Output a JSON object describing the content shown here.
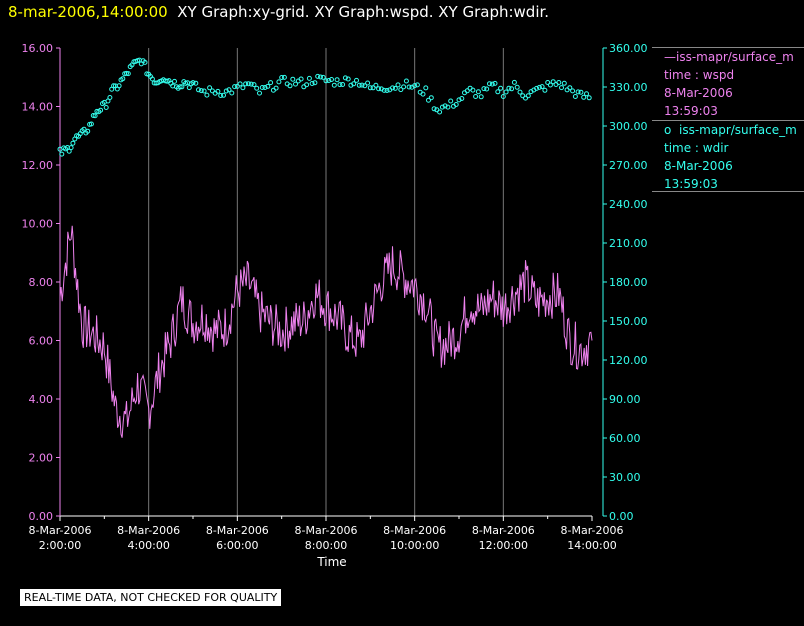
{
  "header": {
    "timestamp": "8-mar-2006,14:00:00",
    "graphs": "XY Graph:xy-grid.  XY Graph:wspd.  XY Graph:wdir."
  },
  "legend": {
    "wspd": {
      "marker": "—",
      "name": "iss-mapr/surface_m",
      "time_label": "time : wspd",
      "date": "8-Mar-2006",
      "time": "13:59:03"
    },
    "wdir": {
      "marker": "o",
      "name": "iss-mapr/surface_m",
      "time_label": "time : wdir",
      "date": "8-Mar-2006",
      "time": "13:59:03"
    }
  },
  "quality_note": "REAL-TIME DATA, NOT CHECKED FOR QUALITY",
  "colors": {
    "wspd": "#ee82ee",
    "wdir": "#33ffee",
    "grid": "#777777",
    "axis_text": "#ffffff",
    "left_axis": "#ee82ee",
    "right_axis": "#33ffee"
  },
  "chart_data": {
    "type": "line",
    "xlabel": "Time",
    "x_range": [
      "8-Mar-2006 02:00:00",
      "8-Mar-2006 14:00:00"
    ],
    "x_ticks": [
      {
        "date": "8-Mar-2006",
        "time": "2:00:00"
      },
      {
        "date": "8-Mar-2006",
        "time": "4:00:00"
      },
      {
        "date": "8-Mar-2006",
        "time": "6:00:00"
      },
      {
        "date": "8-Mar-2006",
        "time": "8:00:00"
      },
      {
        "date": "8-Mar-2006",
        "time": "10:00:00"
      },
      {
        "date": "8-Mar-2006",
        "time": "12:00:00"
      },
      {
        "date": "8-Mar-2006",
        "time": "14:00:00"
      }
    ],
    "y_left": {
      "range": [
        0,
        16
      ],
      "ticks": [
        "0.00",
        "2.00",
        "4.00",
        "6.00",
        "8.00",
        "10.00",
        "12.00",
        "14.00",
        "16.00"
      ]
    },
    "y_right": {
      "range": [
        0,
        360
      ],
      "ticks": [
        "0.00",
        "30.00",
        "60.00",
        "90.00",
        "120.00",
        "150.00",
        "180.00",
        "210.00",
        "240.00",
        "270.00",
        "300.00",
        "330.00",
        "360.00"
      ]
    },
    "grid": "vertical lines at x ticks",
    "series": [
      {
        "name": "wspd",
        "axis": "left",
        "style": "line",
        "x": [
          "02:00",
          "02:15",
          "02:30",
          "02:45",
          "03:00",
          "03:15",
          "03:30",
          "03:45",
          "04:00",
          "04:15",
          "04:30",
          "04:45",
          "05:00",
          "05:15",
          "05:30",
          "05:45",
          "06:00",
          "06:15",
          "06:30",
          "06:45",
          "07:00",
          "07:15",
          "07:30",
          "07:45",
          "08:00",
          "08:15",
          "08:30",
          "08:45",
          "09:00",
          "09:15",
          "09:30",
          "09:45",
          "10:00",
          "10:15",
          "10:30",
          "10:45",
          "11:00",
          "11:15",
          "11:30",
          "11:45",
          "12:00",
          "12:15",
          "12:30",
          "12:45",
          "13:00",
          "13:15",
          "13:30",
          "13:45",
          "14:00"
        ],
        "values": [
          7.5,
          9.8,
          6.5,
          6.2,
          5.8,
          3.7,
          3.2,
          4.5,
          3.6,
          5.0,
          6.0,
          7.4,
          6.6,
          6.8,
          6.3,
          6.5,
          7.7,
          8.0,
          7.0,
          6.6,
          6.3,
          6.6,
          6.7,
          7.6,
          7.2,
          6.8,
          6.2,
          5.9,
          7.0,
          8.0,
          8.6,
          8.2,
          7.9,
          7.3,
          5.8,
          5.9,
          6.3,
          7.3,
          7.0,
          7.5,
          7.1,
          7.6,
          8.0,
          7.3,
          7.5,
          7.6,
          6.0,
          5.7,
          6.0
        ]
      },
      {
        "name": "wdir",
        "axis": "right",
        "style": "markers",
        "x": [
          "02:00",
          "02:10",
          "02:20",
          "02:30",
          "02:40",
          "02:50",
          "03:00",
          "03:10",
          "03:20",
          "03:30",
          "03:40",
          "03:50",
          "04:00",
          "04:10",
          "04:20",
          "04:30",
          "04:40",
          "04:50",
          "05:00",
          "05:15",
          "05:30",
          "05:45",
          "06:00",
          "06:15",
          "06:30",
          "06:45",
          "07:00",
          "07:15",
          "07:30",
          "07:45",
          "08:00",
          "08:15",
          "08:30",
          "08:45",
          "09:00",
          "09:15",
          "09:30",
          "09:45",
          "10:00",
          "10:15",
          "10:30",
          "10:45",
          "11:00",
          "11:15",
          "11:30",
          "11:45",
          "12:00",
          "12:15",
          "12:30",
          "12:45",
          "13:00",
          "13:15",
          "13:30",
          "13:45",
          "14:00"
        ],
        "values": [
          279,
          282,
          290,
          293,
          300,
          312,
          315,
          326,
          332,
          340,
          347,
          351,
          340,
          334,
          338,
          334,
          332,
          334,
          331,
          326,
          327,
          326,
          329,
          332,
          326,
          330,
          334,
          334,
          333,
          336,
          335,
          334,
          335,
          334,
          329,
          330,
          330,
          332,
          330,
          326,
          313,
          315,
          320,
          327,
          324,
          331,
          326,
          331,
          324,
          327,
          331,
          333,
          328,
          323,
          322
        ]
      }
    ]
  }
}
